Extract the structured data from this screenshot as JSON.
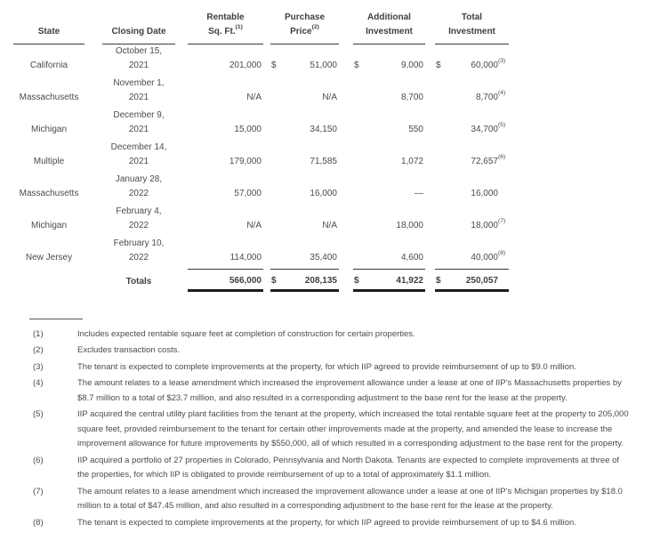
{
  "page": {
    "background": "#ffffff",
    "text_color": "#4b4b4b",
    "rule_color": "#3a3a3a",
    "totals_rule_color": "#1d1d1d"
  },
  "table": {
    "headers": {
      "state": "State",
      "closing_date": "Closing Date",
      "rentable_l1": "Rentable",
      "rentable_l2": "Sq. Ft.",
      "rentable_sup": "(1)",
      "purchase_l1": "Purchase",
      "purchase_l2": "Price",
      "purchase_sup": "(2)",
      "additional_l1": "Additional",
      "additional_l2": "Investment",
      "total_l1": "Total",
      "total_l2": "Investment"
    },
    "rows": [
      {
        "state": "California",
        "date_line1": "October 15,",
        "date_line2": "2021",
        "rentable": "201,000",
        "d_purchase": "$",
        "purchase": "51,000",
        "d_additional": "$",
        "additional": "9,000",
        "d_total": "$",
        "total": "60,000",
        "total_sup": "(3)"
      },
      {
        "state": "Massachusetts",
        "date_line1": "November 1,",
        "date_line2": "2021",
        "rentable": "N/A",
        "d_purchase": "",
        "purchase": "N/A",
        "d_additional": "",
        "additional": "8,700",
        "d_total": "",
        "total": "8,700",
        "total_sup": "(4)"
      },
      {
        "state": "Michigan",
        "date_line1": "December 9,",
        "date_line2": "2021",
        "rentable": "15,000",
        "d_purchase": "",
        "purchase": "34,150",
        "d_additional": "",
        "additional": "550",
        "d_total": "",
        "total": "34,700",
        "total_sup": "(5)"
      },
      {
        "state": "Multiple",
        "date_line1": "December 14,",
        "date_line2": "2021",
        "rentable": "179,000",
        "d_purchase": "",
        "purchase": "71,585",
        "d_additional": "",
        "additional": "1,072",
        "d_total": "",
        "total": "72,657",
        "total_sup": "(6)"
      },
      {
        "state": "Massachusetts",
        "date_line1": "January 28,",
        "date_line2": "2022",
        "rentable": "57,000",
        "d_purchase": "",
        "purchase": "16,000",
        "d_additional": "",
        "additional": "—",
        "d_total": "",
        "total": "16,000",
        "total_sup": ""
      },
      {
        "state": "Michigan",
        "date_line1": "February 4,",
        "date_line2": "2022",
        "rentable": "N/A",
        "d_purchase": "",
        "purchase": "N/A",
        "d_additional": "",
        "additional": "18,000",
        "d_total": "",
        "total": "18,000",
        "total_sup": "(7)"
      },
      {
        "state": "New Jersey",
        "date_line1": "February 10,",
        "date_line2": "2022",
        "rentable": "114,000",
        "d_purchase": "",
        "purchase": "35,400",
        "d_additional": "",
        "additional": "4,600",
        "d_total": "",
        "total": "40,000",
        "total_sup": "(8)"
      }
    ],
    "totals": {
      "label": "Totals",
      "rentable": "566,000",
      "d_purchase": "$",
      "purchase": "208,135",
      "d_additional": "$",
      "additional": "41,922",
      "d_total": "$",
      "total": "250,057"
    }
  },
  "footnotes": [
    {
      "num": "(1)",
      "text": "Includes expected rentable square feet at completion of construction for certain properties."
    },
    {
      "num": "(2)",
      "text": "Excludes transaction costs."
    },
    {
      "num": "(3)",
      "text": "The tenant is expected to complete improvements at the property, for which IIP agreed to provide reimbursement of up to $9.0 million."
    },
    {
      "num": "(4)",
      "text": "The amount relates to a lease amendment which increased the improvement allowance under a lease at one of IIP’s Massachusetts properties by $8.7 million to a total of $23.7 million, and also resulted in a corresponding adjustment to the base rent for the lease at the property."
    },
    {
      "num": "(5)",
      "text": "IIP acquired the central utility plant facilities from the tenant at the property, which increased the total rentable square feet at the property to 205,000 square feet, provided reimbursement to the tenant for certain other improvements made at the property, and amended the lease to increase the improvement allowance for future improvements by $550,000, all of which resulted in a corresponding adjustment to the base rent for the property."
    },
    {
      "num": "(6)",
      "text": "IIP acquired a portfolio of 27 properties in Colorado, Pennsylvania and North Dakota. Tenants are expected to complete improvements at three of the properties, for which IIP is obligated to provide reimbursement of up to a total of approximately $1.1 million."
    },
    {
      "num": "(7)",
      "text": "The amount relates to a lease amendment which increased the improvement allowance under a lease at one of IIP’s Michigan properties by $18.0 million to a total of $47.45 million, and also resulted in a corresponding adjustment to the base rent for the lease at the property."
    },
    {
      "num": "(8)",
      "text": "The tenant is expected to complete improvements at the property, for which IIP agreed to provide reimbursement of up to $4.6 million."
    }
  ]
}
